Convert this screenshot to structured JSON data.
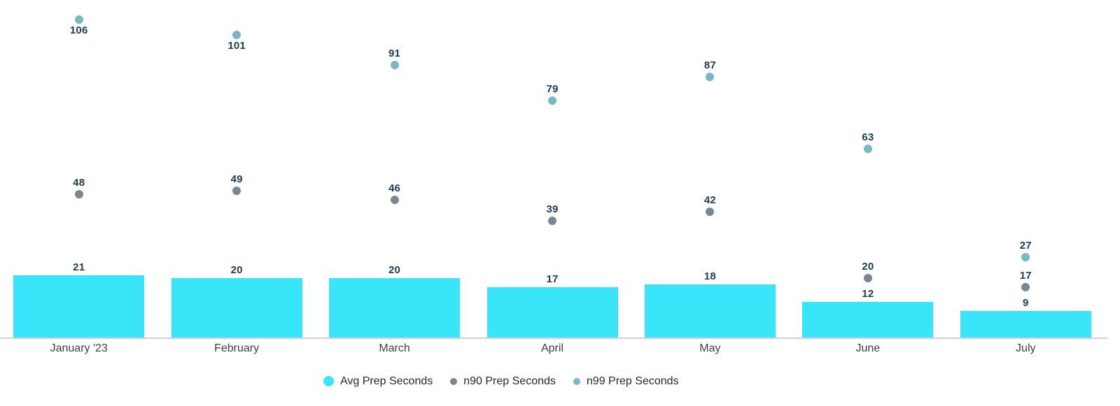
{
  "chart_data": {
    "type": "bar",
    "title": "",
    "xlabel": "",
    "ylabel": "",
    "categories": [
      "January '23",
      "February",
      "March",
      "April",
      "May",
      "June",
      "July"
    ],
    "series": [
      {
        "name": "Avg Prep Seconds",
        "type": "bar",
        "color": "#39e6f9",
        "values": [
          21,
          20,
          20,
          17,
          18,
          12,
          9
        ]
      },
      {
        "name": "n90 Prep Seconds",
        "type": "scatter",
        "color": "#7a8791",
        "values": [
          48,
          49,
          46,
          39,
          42,
          20,
          17
        ]
      },
      {
        "name": "n99 Prep Seconds",
        "type": "scatter",
        "color": "#7bb7c1",
        "values": [
          106,
          101,
          91,
          79,
          87,
          63,
          27
        ]
      }
    ],
    "ylim": [
      0,
      112
    ],
    "grid": false,
    "y_axis_visible": false,
    "value_labels": true,
    "value_label_color": "#1e3d50",
    "category_label_color": "#3c4043",
    "axis_line_color": "#ccd1dc",
    "legend_position": "bottom"
  }
}
